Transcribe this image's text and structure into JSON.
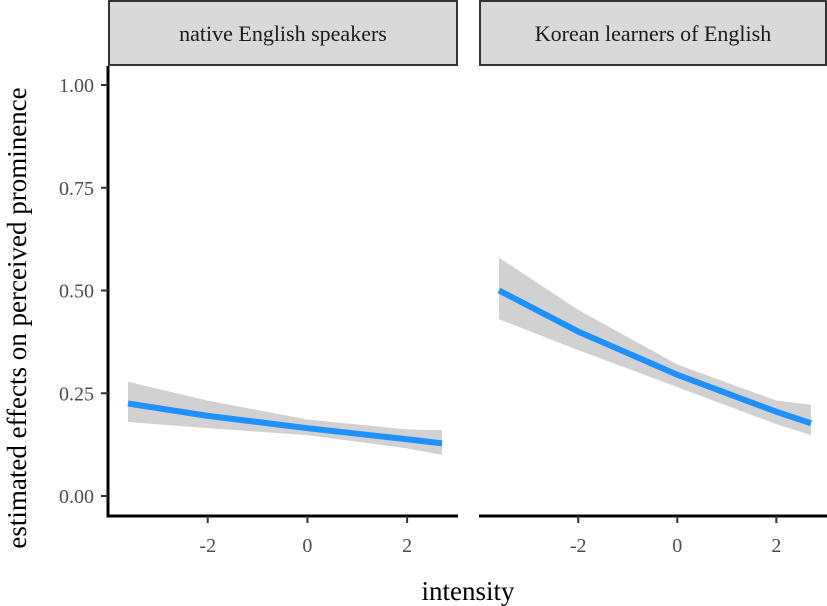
{
  "chart_data": {
    "type": "line",
    "xlabel": "intensity",
    "ylabel": "estimated effects on perceived prominence",
    "ylim": [
      0,
      1
    ],
    "yticks": [
      0,
      0.25,
      0.5,
      0.75,
      1
    ],
    "ytick_labels": [
      "0.00",
      "0.25",
      "0.50",
      "0.75",
      "1.00"
    ],
    "xticks": [
      -2,
      0,
      2
    ],
    "xtick_labels": [
      "-2",
      "0",
      "2"
    ],
    "grid": false,
    "colors": {
      "line": "#1e90ff",
      "band": "#cccccc",
      "strip": "#d9d9d9"
    },
    "panels": [
      {
        "title": "native English speakers",
        "xlim": [
          -3.6,
          2.7
        ],
        "series": [
          {
            "x": [
              -3.6,
              -2.0,
              0.0,
              2.0,
              2.7
            ],
            "y": [
              0.225,
              0.195,
              0.165,
              0.138,
              0.128
            ],
            "lower": [
              0.18,
              0.165,
              0.148,
              0.116,
              0.1
            ],
            "upper": [
              0.278,
              0.232,
              0.186,
              0.162,
              0.16
            ]
          }
        ]
      },
      {
        "title": "Korean learners of English",
        "xlim": [
          -3.6,
          2.7
        ],
        "series": [
          {
            "x": [
              -3.6,
              -2.0,
              0.0,
              2.0,
              2.7
            ],
            "y": [
              0.5,
              0.4,
              0.295,
              0.205,
              0.177
            ],
            "lower": [
              0.43,
              0.355,
              0.265,
              0.175,
              0.148
            ],
            "upper": [
              0.58,
              0.453,
              0.32,
              0.232,
              0.222
            ]
          }
        ]
      }
    ]
  }
}
